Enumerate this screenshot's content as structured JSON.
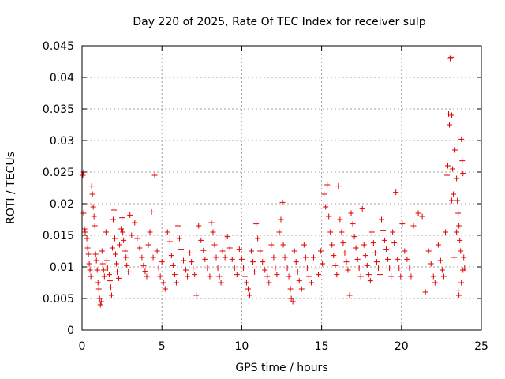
{
  "chart_data": {
    "type": "scatter",
    "title": "Day 220 of 2025, Rate Of TEC Index for receiver sulp",
    "xlabel": "GPS time / hours",
    "ylabel": "ROTI / TECUs",
    "xlim": [
      0,
      25
    ],
    "ylim": [
      0,
      0.045
    ],
    "x_ticks": [
      "0",
      "5",
      "10",
      "15",
      "20",
      "25"
    ],
    "y_ticks": [
      "0",
      "0.005",
      "0.01",
      "0.015",
      "0.02",
      "0.025",
      "0.03",
      "0.035",
      "0.04",
      "0.045"
    ],
    "grid": true,
    "marker": "plus",
    "color": "#e00000",
    "series": [
      {
        "points": [
          [
            0.05,
            0.0245
          ],
          [
            0.1,
            0.025
          ],
          [
            0.1,
            0.0185
          ],
          [
            0.15,
            0.016
          ],
          [
            0.2,
            0.0155
          ],
          [
            0.3,
            0.0145
          ],
          [
            0.35,
            0.013
          ],
          [
            0.4,
            0.012
          ],
          [
            0.45,
            0.0105
          ],
          [
            0.5,
            0.0095
          ],
          [
            0.55,
            0.0085
          ],
          [
            0.6,
            0.0228
          ],
          [
            0.65,
            0.0215
          ],
          [
            0.7,
            0.0195
          ],
          [
            0.75,
            0.018
          ],
          [
            0.8,
            0.0165
          ],
          [
            0.85,
            0.012
          ],
          [
            0.9,
            0.011
          ],
          [
            0.95,
            0.0095
          ],
          [
            1.0,
            0.0075
          ],
          [
            1.05,
            0.0065
          ],
          [
            1.1,
            0.005
          ],
          [
            1.15,
            0.004
          ],
          [
            1.2,
            0.0045
          ],
          [
            1.25,
            0.0125
          ],
          [
            1.3,
            0.0105
          ],
          [
            1.35,
            0.0095
          ],
          [
            1.4,
            0.0085
          ],
          [
            1.5,
            0.0155
          ],
          [
            1.55,
            0.011
          ],
          [
            1.6,
            0.0098
          ],
          [
            1.7,
            0.0088
          ],
          [
            1.75,
            0.0078
          ],
          [
            1.8,
            0.0068
          ],
          [
            1.85,
            0.0055
          ],
          [
            1.9,
            0.013
          ],
          [
            1.95,
            0.0175
          ],
          [
            2.0,
            0.019
          ],
          [
            2.05,
            0.0145
          ],
          [
            2.1,
            0.012
          ],
          [
            2.15,
            0.0105
          ],
          [
            2.2,
            0.0092
          ],
          [
            2.3,
            0.0082
          ],
          [
            2.35,
            0.0135
          ],
          [
            2.45,
            0.016
          ],
          [
            2.5,
            0.0178
          ],
          [
            2.55,
            0.0155
          ],
          [
            2.6,
            0.0142
          ],
          [
            2.7,
            0.0125
          ],
          [
            2.75,
            0.0115
          ],
          [
            2.8,
            0.0102
          ],
          [
            2.9,
            0.0092
          ],
          [
            3.0,
            0.0182
          ],
          [
            3.1,
            0.015
          ],
          [
            3.3,
            0.017
          ],
          [
            3.45,
            0.0145
          ],
          [
            3.6,
            0.013
          ],
          [
            3.75,
            0.0115
          ],
          [
            3.85,
            0.0102
          ],
          [
            3.95,
            0.0093
          ],
          [
            4.05,
            0.0085
          ],
          [
            4.15,
            0.0135
          ],
          [
            4.25,
            0.0155
          ],
          [
            4.35,
            0.0187
          ],
          [
            4.45,
            0.0115
          ],
          [
            4.55,
            0.0245
          ],
          [
            4.7,
            0.0125
          ],
          [
            4.8,
            0.0098
          ],
          [
            4.9,
            0.0085
          ],
          [
            5.0,
            0.0108
          ],
          [
            5.1,
            0.0075
          ],
          [
            5.2,
            0.0065
          ],
          [
            5.35,
            0.0155
          ],
          [
            5.5,
            0.014
          ],
          [
            5.6,
            0.0118
          ],
          [
            5.7,
            0.0102
          ],
          [
            5.8,
            0.0088
          ],
          [
            5.9,
            0.0075
          ],
          [
            6.0,
            0.0165
          ],
          [
            6.1,
            0.0145
          ],
          [
            6.2,
            0.0128
          ],
          [
            6.35,
            0.011
          ],
          [
            6.5,
            0.0095
          ],
          [
            6.6,
            0.0085
          ],
          [
            6.75,
            0.0122
          ],
          [
            6.85,
            0.0108
          ],
          [
            6.95,
            0.0098
          ],
          [
            7.05,
            0.0088
          ],
          [
            7.15,
            0.0055
          ],
          [
            7.3,
            0.0165
          ],
          [
            7.45,
            0.0142
          ],
          [
            7.6,
            0.0126
          ],
          [
            7.7,
            0.0112
          ],
          [
            7.85,
            0.0098
          ],
          [
            8.0,
            0.0085
          ],
          [
            8.1,
            0.017
          ],
          [
            8.2,
            0.0155
          ],
          [
            8.3,
            0.0135
          ],
          [
            8.4,
            0.0115
          ],
          [
            8.5,
            0.0098
          ],
          [
            8.6,
            0.0085
          ],
          [
            8.7,
            0.0075
          ],
          [
            8.8,
            0.0125
          ],
          [
            8.95,
            0.0115
          ],
          [
            9.1,
            0.0148
          ],
          [
            9.25,
            0.013
          ],
          [
            9.4,
            0.0112
          ],
          [
            9.55,
            0.0098
          ],
          [
            9.7,
            0.0088
          ],
          [
            9.85,
            0.0128
          ],
          [
            10.0,
            0.0112
          ],
          [
            10.1,
            0.0098
          ],
          [
            10.2,
            0.0085
          ],
          [
            10.3,
            0.0075
          ],
          [
            10.4,
            0.0065
          ],
          [
            10.5,
            0.0055
          ],
          [
            10.6,
            0.0125
          ],
          [
            10.7,
            0.0108
          ],
          [
            10.8,
            0.0092
          ],
          [
            10.9,
            0.0168
          ],
          [
            11.0,
            0.0145
          ],
          [
            11.15,
            0.0125
          ],
          [
            11.3,
            0.0108
          ],
          [
            11.45,
            0.0095
          ],
          [
            11.6,
            0.0085
          ],
          [
            11.7,
            0.0075
          ],
          [
            11.85,
            0.0135
          ],
          [
            12.0,
            0.0115
          ],
          [
            12.1,
            0.0098
          ],
          [
            12.2,
            0.0088
          ],
          [
            12.35,
            0.0155
          ],
          [
            12.45,
            0.0175
          ],
          [
            12.55,
            0.0202
          ],
          [
            12.6,
            0.0135
          ],
          [
            12.7,
            0.0115
          ],
          [
            12.85,
            0.0098
          ],
          [
            12.95,
            0.0085
          ],
          [
            13.05,
            0.0065
          ],
          [
            13.1,
            0.005
          ],
          [
            13.2,
            0.0045
          ],
          [
            13.3,
            0.0125
          ],
          [
            13.4,
            0.0108
          ],
          [
            13.5,
            0.0092
          ],
          [
            13.6,
            0.0078
          ],
          [
            13.75,
            0.0065
          ],
          [
            13.9,
            0.0135
          ],
          [
            14.0,
            0.0115
          ],
          [
            14.1,
            0.0098
          ],
          [
            14.2,
            0.0085
          ],
          [
            14.35,
            0.0075
          ],
          [
            14.5,
            0.0115
          ],
          [
            14.65,
            0.0098
          ],
          [
            14.8,
            0.0088
          ],
          [
            14.95,
            0.0125
          ],
          [
            15.05,
            0.0105
          ],
          [
            15.15,
            0.0215
          ],
          [
            15.25,
            0.0195
          ],
          [
            15.35,
            0.023
          ],
          [
            15.45,
            0.018
          ],
          [
            15.55,
            0.0155
          ],
          [
            15.65,
            0.0135
          ],
          [
            15.75,
            0.0118
          ],
          [
            15.85,
            0.0102
          ],
          [
            15.95,
            0.0088
          ],
          [
            16.05,
            0.0228
          ],
          [
            16.15,
            0.0175
          ],
          [
            16.25,
            0.0155
          ],
          [
            16.35,
            0.0138
          ],
          [
            16.45,
            0.0122
          ],
          [
            16.55,
            0.0108
          ],
          [
            16.65,
            0.0095
          ],
          [
            16.75,
            0.0055
          ],
          [
            16.85,
            0.0185
          ],
          [
            16.95,
            0.0168
          ],
          [
            17.05,
            0.0148
          ],
          [
            17.15,
            0.013
          ],
          [
            17.25,
            0.0112
          ],
          [
            17.35,
            0.0098
          ],
          [
            17.45,
            0.0085
          ],
          [
            17.55,
            0.0192
          ],
          [
            17.65,
            0.0135
          ],
          [
            17.75,
            0.0118
          ],
          [
            17.85,
            0.0102
          ],
          [
            17.95,
            0.0088
          ],
          [
            18.05,
            0.0078
          ],
          [
            18.15,
            0.0155
          ],
          [
            18.25,
            0.0138
          ],
          [
            18.35,
            0.0122
          ],
          [
            18.45,
            0.0108
          ],
          [
            18.55,
            0.0098
          ],
          [
            18.65,
            0.0088
          ],
          [
            18.75,
            0.0175
          ],
          [
            18.85,
            0.0158
          ],
          [
            18.95,
            0.0142
          ],
          [
            19.05,
            0.0128
          ],
          [
            19.15,
            0.0112
          ],
          [
            19.25,
            0.0098
          ],
          [
            19.35,
            0.0085
          ],
          [
            19.45,
            0.0155
          ],
          [
            19.55,
            0.0138
          ],
          [
            19.65,
            0.0218
          ],
          [
            19.75,
            0.0112
          ],
          [
            19.85,
            0.0098
          ],
          [
            19.95,
            0.0085
          ],
          [
            20.05,
            0.0168
          ],
          [
            20.2,
            0.0125
          ],
          [
            20.35,
            0.0112
          ],
          [
            20.5,
            0.0098
          ],
          [
            20.6,
            0.0085
          ],
          [
            20.75,
            0.0165
          ],
          [
            21.05,
            0.0185
          ],
          [
            21.3,
            0.018
          ],
          [
            21.5,
            0.006
          ],
          [
            21.7,
            0.0125
          ],
          [
            21.85,
            0.0105
          ],
          [
            22.0,
            0.0085
          ],
          [
            22.1,
            0.0075
          ],
          [
            22.3,
            0.0135
          ],
          [
            22.45,
            0.011
          ],
          [
            22.55,
            0.0095
          ],
          [
            22.65,
            0.0085
          ],
          [
            22.75,
            0.0155
          ],
          [
            22.85,
            0.0245
          ],
          [
            22.9,
            0.026
          ],
          [
            22.95,
            0.0342
          ],
          [
            23.0,
            0.0325
          ],
          [
            23.05,
            0.043
          ],
          [
            23.1,
            0.0432
          ],
          [
            23.15,
            0.034
          ],
          [
            23.2,
            0.0255
          ],
          [
            23.25,
            0.0215
          ],
          [
            23.35,
            0.0285
          ],
          [
            23.45,
            0.024
          ],
          [
            23.5,
            0.0205
          ],
          [
            23.55,
            0.0185
          ],
          [
            23.6,
            0.0165
          ],
          [
            23.65,
            0.0142
          ],
          [
            23.7,
            0.0125
          ],
          [
            23.75,
            0.0302
          ],
          [
            23.8,
            0.0268
          ],
          [
            23.85,
            0.0248
          ],
          [
            23.9,
            0.0115
          ],
          [
            23.95,
            0.0098
          ],
          [
            23.55,
            0.0062
          ],
          [
            23.6,
            0.0055
          ],
          [
            23.75,
            0.0075
          ],
          [
            23.85,
            0.0095
          ],
          [
            23.45,
            0.0155
          ],
          [
            23.3,
            0.0115
          ],
          [
            23.15,
            0.0205
          ]
        ]
      }
    ]
  }
}
